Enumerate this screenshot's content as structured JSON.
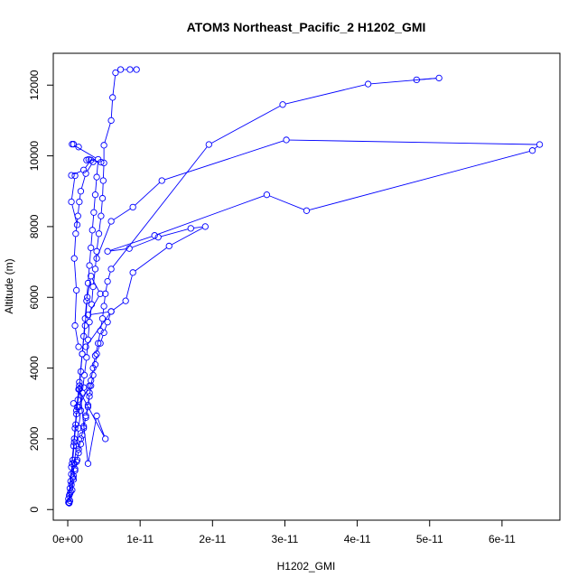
{
  "chart_data": {
    "type": "line",
    "title": "ATOM3 Northeast_Pacific_2 H1202_GMI",
    "xlabel": "H1202_GMI",
    "ylabel": "Altitude (m)",
    "xlim": [
      -2e-12,
      6.8e-11
    ],
    "ylim": [
      -300,
      12900
    ],
    "x_ticks": [
      0,
      1e-11,
      2e-11,
      3e-11,
      4e-11,
      5e-11,
      6e-11
    ],
    "x_tick_labels": [
      "0e+00",
      "1e-11",
      "2e-11",
      "3e-11",
      "4e-11",
      "5e-11",
      "6e-11"
    ],
    "y_ticks": [
      0,
      2000,
      4000,
      6000,
      8000,
      10000,
      12000
    ],
    "y_tick_labels": [
      "0",
      "2000",
      "4000",
      "6000",
      "8000",
      "10000",
      "12000"
    ],
    "grid": false,
    "line_color": "#0000ff",
    "marker": "open-circle",
    "series": [
      {
        "values": [
          [
            2e-13,
            200
          ],
          [
            3e-13,
            450
          ],
          [
            5e-13,
            700
          ],
          [
            8e-13,
            950
          ],
          [
            1e-12,
            1150
          ],
          [
            1.2e-12,
            1350
          ],
          [
            1.5e-12,
            1600
          ],
          [
            1.8e-12,
            1850
          ],
          [
            2e-12,
            2100
          ],
          [
            2.2e-12,
            2350
          ],
          [
            2.5e-12,
            2600
          ],
          [
            2.8e-12,
            2900
          ],
          [
            3e-12,
            3200
          ],
          [
            3.2e-12,
            3500
          ],
          [
            3.5e-12,
            3800
          ],
          [
            3.8e-12,
            4100
          ],
          [
            4e-12,
            4400
          ],
          [
            4.5e-12,
            4700
          ],
          [
            5e-12,
            5000
          ],
          [
            5.5e-12,
            5300
          ],
          [
            6e-12,
            5600
          ],
          [
            8e-12,
            5900
          ],
          [
            9e-12,
            6700
          ],
          [
            1.4e-11,
            7450
          ],
          [
            1.9e-11,
            8000
          ],
          [
            1.7e-11,
            7950
          ],
          [
            1.25e-11,
            7700
          ],
          [
            8.5e-12,
            7380
          ],
          [
            5.5e-12,
            7300
          ],
          [
            1.2e-11,
            7750
          ],
          [
            2.75e-11,
            8900
          ],
          [
            3.3e-11,
            8450
          ],
          [
            6.42e-11,
            10150
          ],
          [
            6.52e-11,
            10320
          ],
          [
            3.02e-11,
            10450
          ],
          [
            1.3e-11,
            9300
          ],
          [
            9e-12,
            8550
          ],
          [
            6e-12,
            8150
          ],
          [
            4e-12,
            7100
          ]
        ]
      },
      {
        "values": [
          [
            3e-13,
            250
          ],
          [
            6e-13,
            550
          ],
          [
            8e-13,
            850
          ],
          [
            1e-12,
            1100
          ],
          [
            1.3e-12,
            1400
          ],
          [
            1.5e-12,
            1700
          ],
          [
            1.8e-12,
            2000
          ],
          [
            2.2e-12,
            2300
          ],
          [
            2.5e-12,
            2650
          ],
          [
            2.8e-12,
            2950
          ],
          [
            3e-12,
            3300
          ],
          [
            3.2e-12,
            3650
          ],
          [
            3.5e-12,
            4000
          ],
          [
            3.8e-12,
            4350
          ],
          [
            4.2e-12,
            4700
          ],
          [
            4.5e-12,
            5050
          ],
          [
            4.8e-12,
            5400
          ],
          [
            5e-12,
            5750
          ],
          [
            5.2e-12,
            6100
          ],
          [
            5.5e-12,
            6450
          ],
          [
            6e-12,
            6800
          ],
          [
            1.95e-11,
            10320
          ],
          [
            2.97e-11,
            11450
          ],
          [
            4.15e-11,
            12030
          ],
          [
            5.13e-11,
            12200
          ],
          [
            4.82e-11,
            12150
          ]
        ]
      },
      {
        "values": [
          [
            2e-13,
            180
          ],
          [
            4e-13,
            500
          ],
          [
            7e-13,
            900
          ],
          [
            9e-13,
            1300
          ],
          [
            1.2e-12,
            1800
          ],
          [
            1.5e-12,
            2300
          ],
          [
            1.8e-12,
            2800
          ],
          [
            2e-12,
            3300
          ],
          [
            2.3e-12,
            3800
          ],
          [
            2.6e-12,
            4300
          ],
          [
            2.8e-12,
            4800
          ],
          [
            3e-12,
            5300
          ],
          [
            3.3e-12,
            5800
          ],
          [
            3.5e-12,
            6300
          ],
          [
            3.8e-12,
            6800
          ],
          [
            4e-12,
            7300
          ],
          [
            4.3e-12,
            7800
          ],
          [
            4.6e-12,
            8300
          ],
          [
            4.8e-12,
            8800
          ],
          [
            4.9e-12,
            9300
          ],
          [
            5e-12,
            9800
          ],
          [
            5e-12,
            10300
          ],
          [
            6e-12,
            11000
          ],
          [
            6.2e-12,
            11650
          ],
          [
            6.6e-12,
            12350
          ],
          [
            7.3e-12,
            12440
          ],
          [
            8.6e-12,
            12440
          ],
          [
            9.5e-12,
            12440
          ]
        ]
      },
      {
        "values": [
          [
            1e-13,
            200
          ],
          [
            3e-13,
            600
          ],
          [
            5e-13,
            1000
          ],
          [
            7e-13,
            1400
          ],
          [
            9e-13,
            1900
          ],
          [
            1.1e-12,
            2400
          ],
          [
            1.3e-12,
            2900
          ],
          [
            1.6e-12,
            3400
          ],
          [
            1.8e-12,
            3900
          ],
          [
            2e-12,
            4400
          ],
          [
            2.2e-12,
            4900
          ],
          [
            2.4e-12,
            5400
          ],
          [
            2.6e-12,
            5900
          ],
          [
            2.8e-12,
            6400
          ],
          [
            3e-12,
            6900
          ],
          [
            3.2e-12,
            7400
          ],
          [
            3.4e-12,
            7900
          ],
          [
            3.6e-12,
            8400
          ],
          [
            3.8e-12,
            8900
          ],
          [
            4e-12,
            9400
          ],
          [
            4.2e-12,
            9900
          ],
          [
            6e-13,
            10330
          ],
          [
            8e-13,
            10330
          ],
          [
            1.5e-12,
            10250
          ]
        ]
      },
      {
        "values": [
          [
            1e-13,
            300
          ],
          [
            4e-13,
            800
          ],
          [
            6e-13,
            1300
          ],
          [
            8e-13,
            1800
          ],
          [
            1e-12,
            2300
          ],
          [
            1.2e-12,
            2700
          ],
          [
            1.4e-12,
            3100
          ],
          [
            1.6e-12,
            3500
          ],
          [
            2.8e-12,
            1300
          ],
          [
            4e-12,
            2650
          ],
          [
            5.2e-12,
            2000
          ],
          [
            1.5e-12,
            3400
          ],
          [
            2.2e-12,
            3450
          ],
          [
            3e-12,
            3500
          ],
          [
            1.5e-12,
            2900
          ],
          [
            8e-13,
            3000
          ]
        ]
      },
      {
        "values": [
          [
            2e-13,
            400
          ],
          [
            5e-13,
            1200
          ],
          [
            9e-13,
            2000
          ],
          [
            1.2e-12,
            2800
          ],
          [
            1.6e-12,
            3600
          ],
          [
            2e-12,
            4400
          ],
          [
            2.4e-12,
            5200
          ],
          [
            2.7e-12,
            6000
          ],
          [
            3.2e-12,
            6600
          ],
          [
            4.5e-12,
            6100
          ],
          [
            2.8e-12,
            5500
          ],
          [
            6e-12,
            5600
          ],
          [
            2.5e-12,
            4600
          ],
          [
            1.5e-12,
            4600
          ],
          [
            1e-12,
            5200
          ],
          [
            1.2e-12,
            6200
          ],
          [
            9e-13,
            7100
          ],
          [
            1.1e-12,
            7800
          ],
          [
            1.4e-12,
            8300
          ],
          [
            1.6e-12,
            8700
          ],
          [
            1.8e-12,
            9000
          ],
          [
            2.5e-12,
            9500
          ],
          [
            3.5e-12,
            9830
          ],
          [
            2.6e-12,
            9880
          ],
          [
            2.9e-12,
            9900
          ],
          [
            4.6e-12,
            9820
          ],
          [
            3.2e-12,
            9880
          ],
          [
            2.2e-12,
            9600
          ],
          [
            5e-13,
            9450
          ],
          [
            1e-12,
            9440
          ],
          [
            5e-13,
            8700
          ],
          [
            1.3e-12,
            8050
          ]
        ]
      }
    ]
  }
}
